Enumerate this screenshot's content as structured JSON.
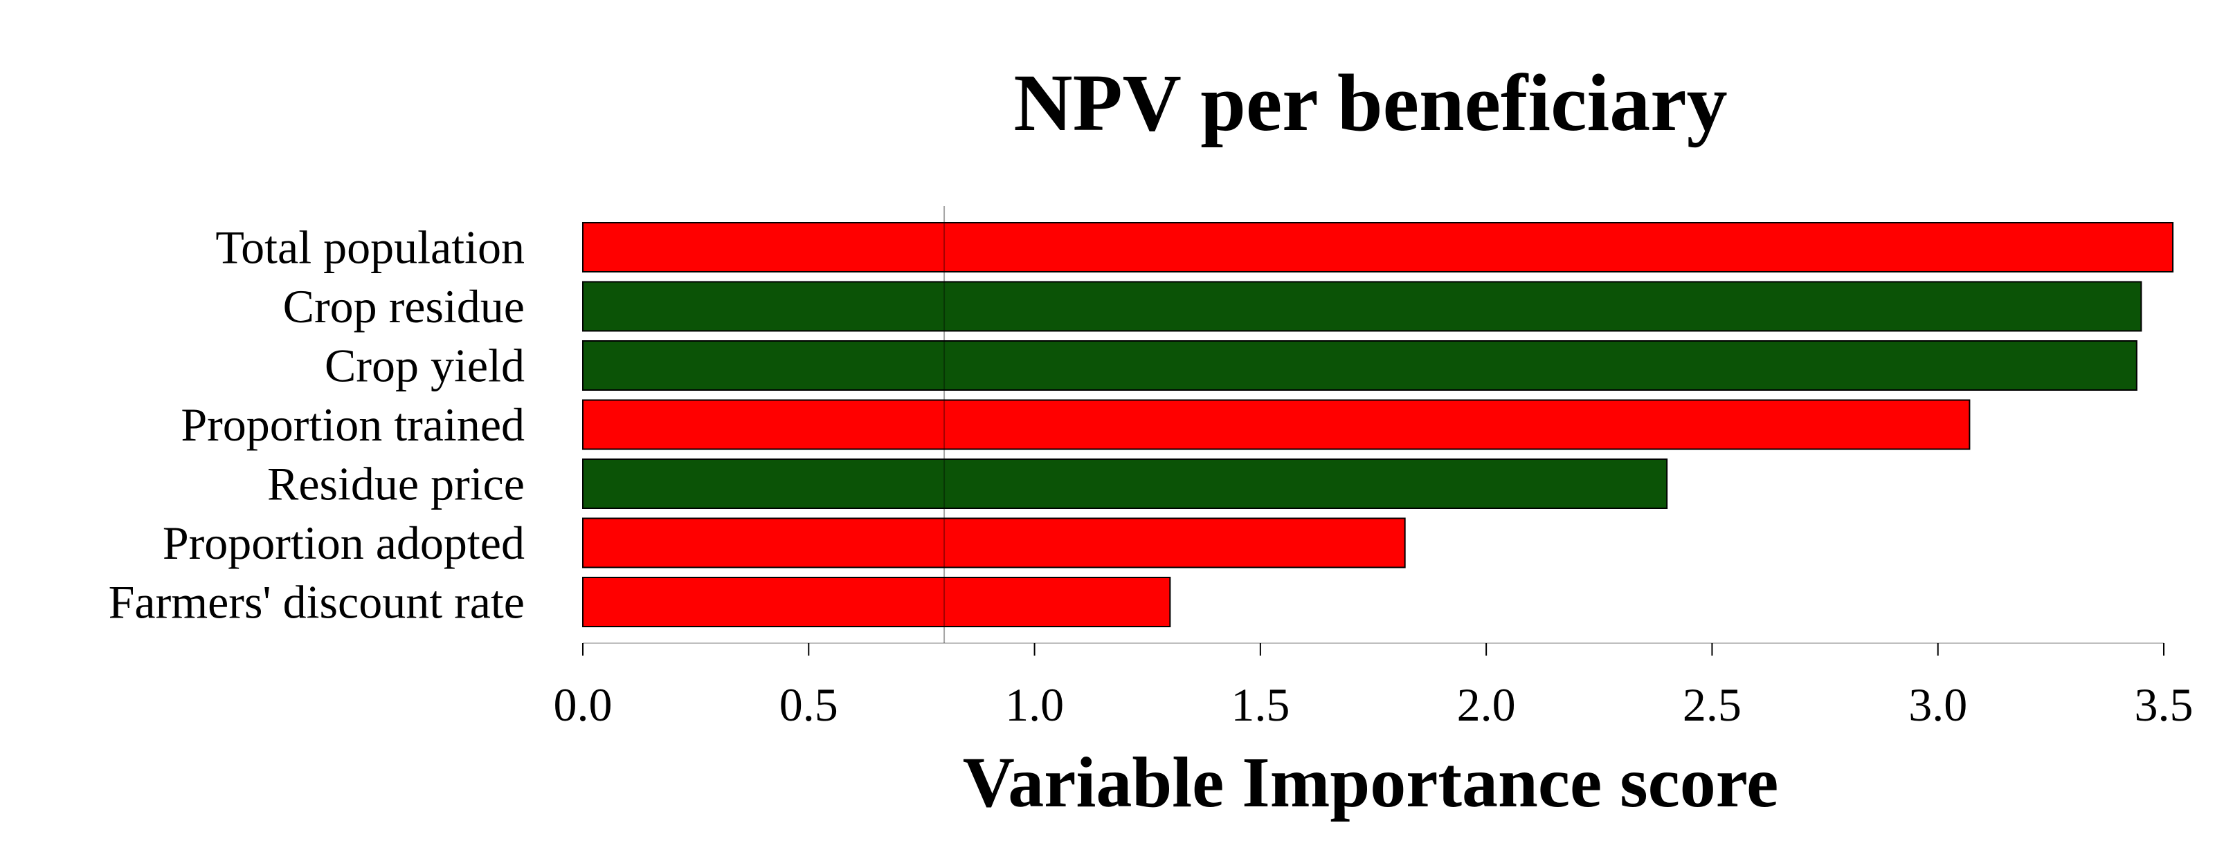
{
  "chart_data": {
    "type": "bar",
    "orientation": "horizontal",
    "title": "NPV per beneficiary",
    "xlabel": "Variable Importance score",
    "ylabel": "",
    "categories": [
      "Total population",
      "Crop residue",
      "Crop yield",
      "Proportion trained",
      "Residue price",
      "Proportion adopted",
      "Farmers' discount rate"
    ],
    "values": [
      3.52,
      3.45,
      3.44,
      3.07,
      2.4,
      1.82,
      1.3
    ],
    "bar_colors": [
      "#ff0000",
      "#0b5306",
      "#0b5306",
      "#ff0000",
      "#0b5306",
      "#ff0000",
      "#ff0000"
    ],
    "xlim": [
      0,
      3.5
    ],
    "xticks": [
      "0.0",
      "0.5",
      "1.0",
      "1.5",
      "2.0",
      "2.5",
      "3.0",
      "3.5"
    ],
    "reference_line": 0.8,
    "grid": false,
    "legend": "none"
  }
}
